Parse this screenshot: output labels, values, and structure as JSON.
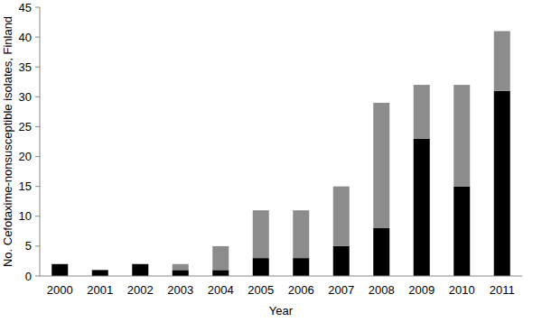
{
  "chart_data": {
    "type": "bar",
    "stacked": true,
    "x_label": "Year",
    "y_label": "No. Cefotaxime-nonsusceptible isolates, Finland",
    "categories": [
      "2000",
      "2001",
      "2002",
      "2003",
      "2004",
      "2005",
      "2006",
      "2007",
      "2008",
      "2009",
      "2010",
      "2011"
    ],
    "series": [
      {
        "color": "#000000",
        "values": [
          2,
          1,
          2,
          1,
          1,
          3,
          3,
          5,
          8,
          23,
          15,
          31
        ]
      },
      {
        "color": "#8c8c8c",
        "values": [
          0,
          0,
          0,
          1,
          4,
          8,
          8,
          10,
          21,
          9,
          17,
          10
        ]
      }
    ],
    "ylim": [
      0,
      45
    ],
    "yticks": [
      0,
      5,
      10,
      15,
      20,
      25,
      30,
      35,
      40,
      45
    ],
    "grid": false
  }
}
